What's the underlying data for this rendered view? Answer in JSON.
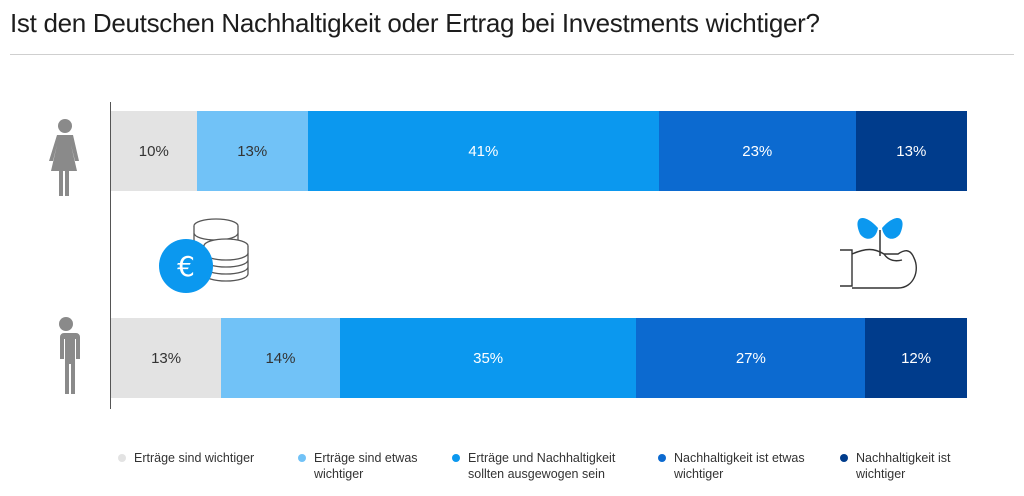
{
  "title": "Ist den Deutschen Nachhaltigkeit oder Ertrag bei Investments wichtiger?",
  "colors": {
    "c1": "#e3e3e3",
    "c2": "#71c2f7",
    "c3": "#0b98ef",
    "c4": "#0c6ad0",
    "c5": "#003c8c",
    "icon_blue": "#0b98ef",
    "person_gray": "#8a8a8a"
  },
  "icons": {
    "women": "female-person-icon",
    "men": "male-person-icon",
    "coins": "euro-coins-icon",
    "plant": "hand-plant-icon"
  },
  "chart_data": {
    "type": "bar",
    "orientation": "horizontal",
    "stacked": true,
    "normalized": true,
    "categories": [
      "Frauen",
      "Männer"
    ],
    "series": [
      {
        "name": "Erträge sind wichtiger",
        "values": [
          10,
          13
        ],
        "labels": [
          "10%",
          "13%"
        ],
        "color": "#e3e3e3",
        "text_color": "#333333"
      },
      {
        "name": "Erträge sind etwas\nwichtiger",
        "values": [
          13,
          14
        ],
        "labels": [
          "13%",
          "14%"
        ],
        "color": "#71c2f7",
        "text_color": "#333333"
      },
      {
        "name": "Erträge und Nachhaltigkeit\nsollten ausgewogen sein",
        "values": [
          41,
          35
        ],
        "labels": [
          "41%",
          "35%"
        ],
        "color": "#0b98ef",
        "text_color": "#ffffff"
      },
      {
        "name": "Nachhaltigkeit ist etwas\nwichtiger",
        "values": [
          23,
          27
        ],
        "labels": [
          "23%",
          "27%"
        ],
        "color": "#0c6ad0",
        "text_color": "#ffffff"
      },
      {
        "name": "Nachhaltigkeit ist\nwichtiger",
        "values": [
          13,
          12
        ],
        "labels": [
          "13%",
          "12%"
        ],
        "color": "#003c8c",
        "text_color": "#ffffff"
      }
    ],
    "legend_position": "bottom",
    "grid": false
  }
}
